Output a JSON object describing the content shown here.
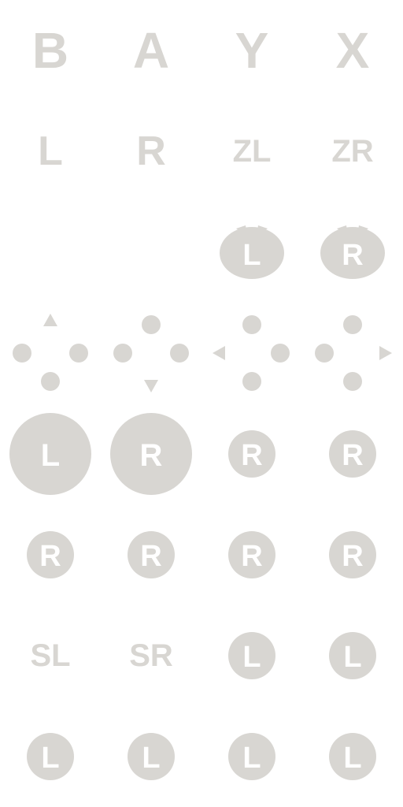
{
  "sheet": {
    "row1": [
      "B",
      "A",
      "Y",
      "X"
    ],
    "row2": [
      "L",
      "R",
      "ZL",
      "ZR"
    ],
    "row3": [
      "L",
      "R"
    ],
    "row5": [
      "L",
      "R",
      "R",
      "R"
    ],
    "row6": [
      "R",
      "R",
      "R",
      "R"
    ],
    "row7_text": [
      "SL",
      "SR"
    ],
    "row7_badges": [
      "L",
      "L"
    ],
    "row8": [
      "L",
      "L",
      "L",
      "L"
    ]
  },
  "colors": {
    "glyph": "#d8d6d2",
    "glyph_inner": "#ffffff"
  },
  "icons": {
    "row3": [
      "zl-trigger-icon",
      "zr-trigger-icon"
    ],
    "row4": [
      "dpad-up-icon",
      "dpad-down-icon",
      "dpad-left-icon",
      "dpad-right-icon"
    ],
    "row5": [
      "left-stick-large-icon",
      "right-stick-large-icon",
      "right-stick-icon",
      "right-stick-icon"
    ],
    "row6": [
      "right-stick-icon",
      "right-stick-icon",
      "right-stick-icon",
      "right-stick-icon"
    ],
    "row7": [
      "sl-label",
      "sr-label",
      "left-stick-icon",
      "left-stick-icon"
    ],
    "row8": [
      "left-stick-icon",
      "left-stick-icon",
      "left-stick-icon",
      "left-stick-icon"
    ]
  }
}
